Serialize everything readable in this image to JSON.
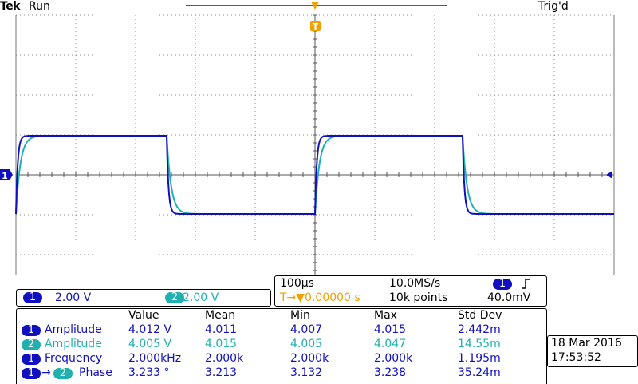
{
  "header": {
    "brand": "Tek",
    "run_status": "Run",
    "trigger_status": "Trig'd",
    "trigger_marker": "T"
  },
  "colors": {
    "ch1": "#1010c0",
    "ch2": "#20b0b0",
    "trigger": "#f0a000",
    "grid": "#888888"
  },
  "channels": {
    "ch1": {
      "badge": "1",
      "scale": "2.00 V"
    },
    "ch2": {
      "badge": "2",
      "scale": "2.00 V"
    }
  },
  "timebase": {
    "horizontal_scale": "100µs",
    "sample_rate": "10.0MS/s",
    "trigger_channel_badge": "1",
    "trigger_slope_icon": "rising-edge-icon",
    "trigger_position": "T→▼0.00000 s",
    "record_length": "10k points",
    "trigger_level": "40.0mV"
  },
  "measurements": {
    "headers": [
      "Value",
      "Mean",
      "Min",
      "Max",
      "Std Dev"
    ],
    "rows": [
      {
        "badge": "1",
        "badge2": "",
        "name": "Amplitude",
        "color": "#1010c0",
        "values": [
          "4.012 V",
          "4.011",
          "4.007",
          "4.015",
          "2.442m"
        ]
      },
      {
        "badge": "2",
        "badge2": "",
        "name": "Amplitude",
        "color": "#20b0b0",
        "values": [
          "4.005 V",
          "4.015",
          "4.005",
          "4.047",
          "14.55m"
        ]
      },
      {
        "badge": "1",
        "badge2": "",
        "name": "Frequency",
        "color": "#1010c0",
        "values": [
          "2.000kHz",
          "2.000k",
          "2.000k",
          "2.000k",
          "1.195m"
        ]
      },
      {
        "badge": "1",
        "badge2": "2",
        "name": "Phase",
        "color": "#1010c0",
        "values": [
          "3.233 °",
          "3.213",
          "3.132",
          "3.238",
          "35.24m"
        ]
      }
    ]
  },
  "datetime": {
    "date": "18 Mar  2016",
    "time": "17:53:52"
  }
}
